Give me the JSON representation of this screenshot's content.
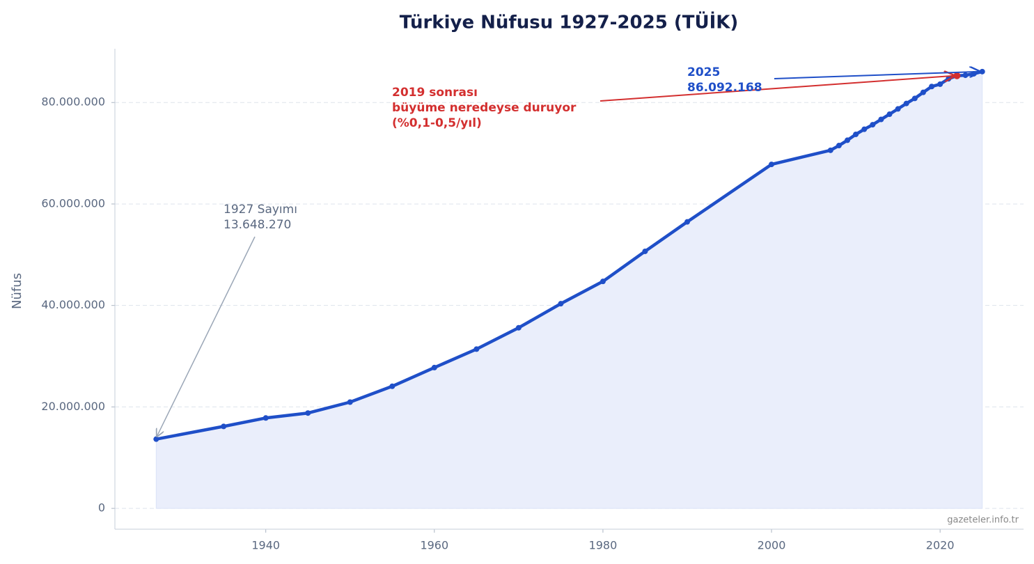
{
  "chart_data": {
    "type": "line",
    "title": "Türkiye Nüfusu 1927-2025 (TÜİK)",
    "y_label": "Nüfus",
    "watermark": "gazeteler.info.tr",
    "x": [
      1927,
      1935,
      1940,
      1945,
      1950,
      1955,
      1960,
      1965,
      1970,
      1975,
      1980,
      1985,
      1990,
      2000,
      2007,
      2008,
      2009,
      2010,
      2011,
      2012,
      2013,
      2014,
      2015,
      2016,
      2017,
      2018,
      2019,
      2020,
      2021,
      2022,
      2023,
      2024,
      2025
    ],
    "series": [
      {
        "color": "#1f4fc8",
        "fill": "#eaeefb",
        "values": [
          13648270,
          16158018,
          17820950,
          18790174,
          20947188,
          24064763,
          27754820,
          31391421,
          35605176,
          40347719,
          44736957,
          50664458,
          56473035,
          67803927,
          70586256,
          71517100,
          72561312,
          73722988,
          74724269,
          75627384,
          76667864,
          77695904,
          78741053,
          79814871,
          80810525,
          82003882,
          83154997,
          83614362,
          84680273,
          85279553,
          85372377,
          85664944,
          86092168
        ]
      }
    ],
    "xlim": [
      1922.1,
      2029.9
    ],
    "ylim": [
      -4100000,
      90600000
    ],
    "xticks": [
      1940,
      1960,
      1980,
      2000,
      2020
    ],
    "yticks": [
      0,
      {
        "value": 20000000,
        "label": "20.000.000"
      },
      {
        "value": 40000000,
        "label": "40.000.000"
      },
      {
        "value": 60000000,
        "label": "60.000.000"
      },
      {
        "value": 80000000,
        "label": "80.000.000"
      }
    ],
    "grid": true,
    "annotations": [
      {
        "lines": [
          "1927 Sayımı",
          "13.648.270"
        ],
        "xy": [
          1927,
          13648270
        ],
        "color": "#5a6880",
        "arrow_color": "#9aa6b6",
        "bold": false
      },
      {
        "lines": [
          "2019 sonrası",
          "büyüme neredeyse duruyor",
          "(%0,1-0,5/yıl)"
        ],
        "xy": [
          2022,
          85279553
        ],
        "color": "#d32f2f",
        "arrow_color": "#d32f2f",
        "bold": true
      },
      {
        "lines": [
          "2025",
          "86.092.168"
        ],
        "xy": [
          2025,
          86092168
        ],
        "color": "#1f4fc8",
        "arrow_color": "#1f4fc8",
        "bold": true
      }
    ]
  }
}
